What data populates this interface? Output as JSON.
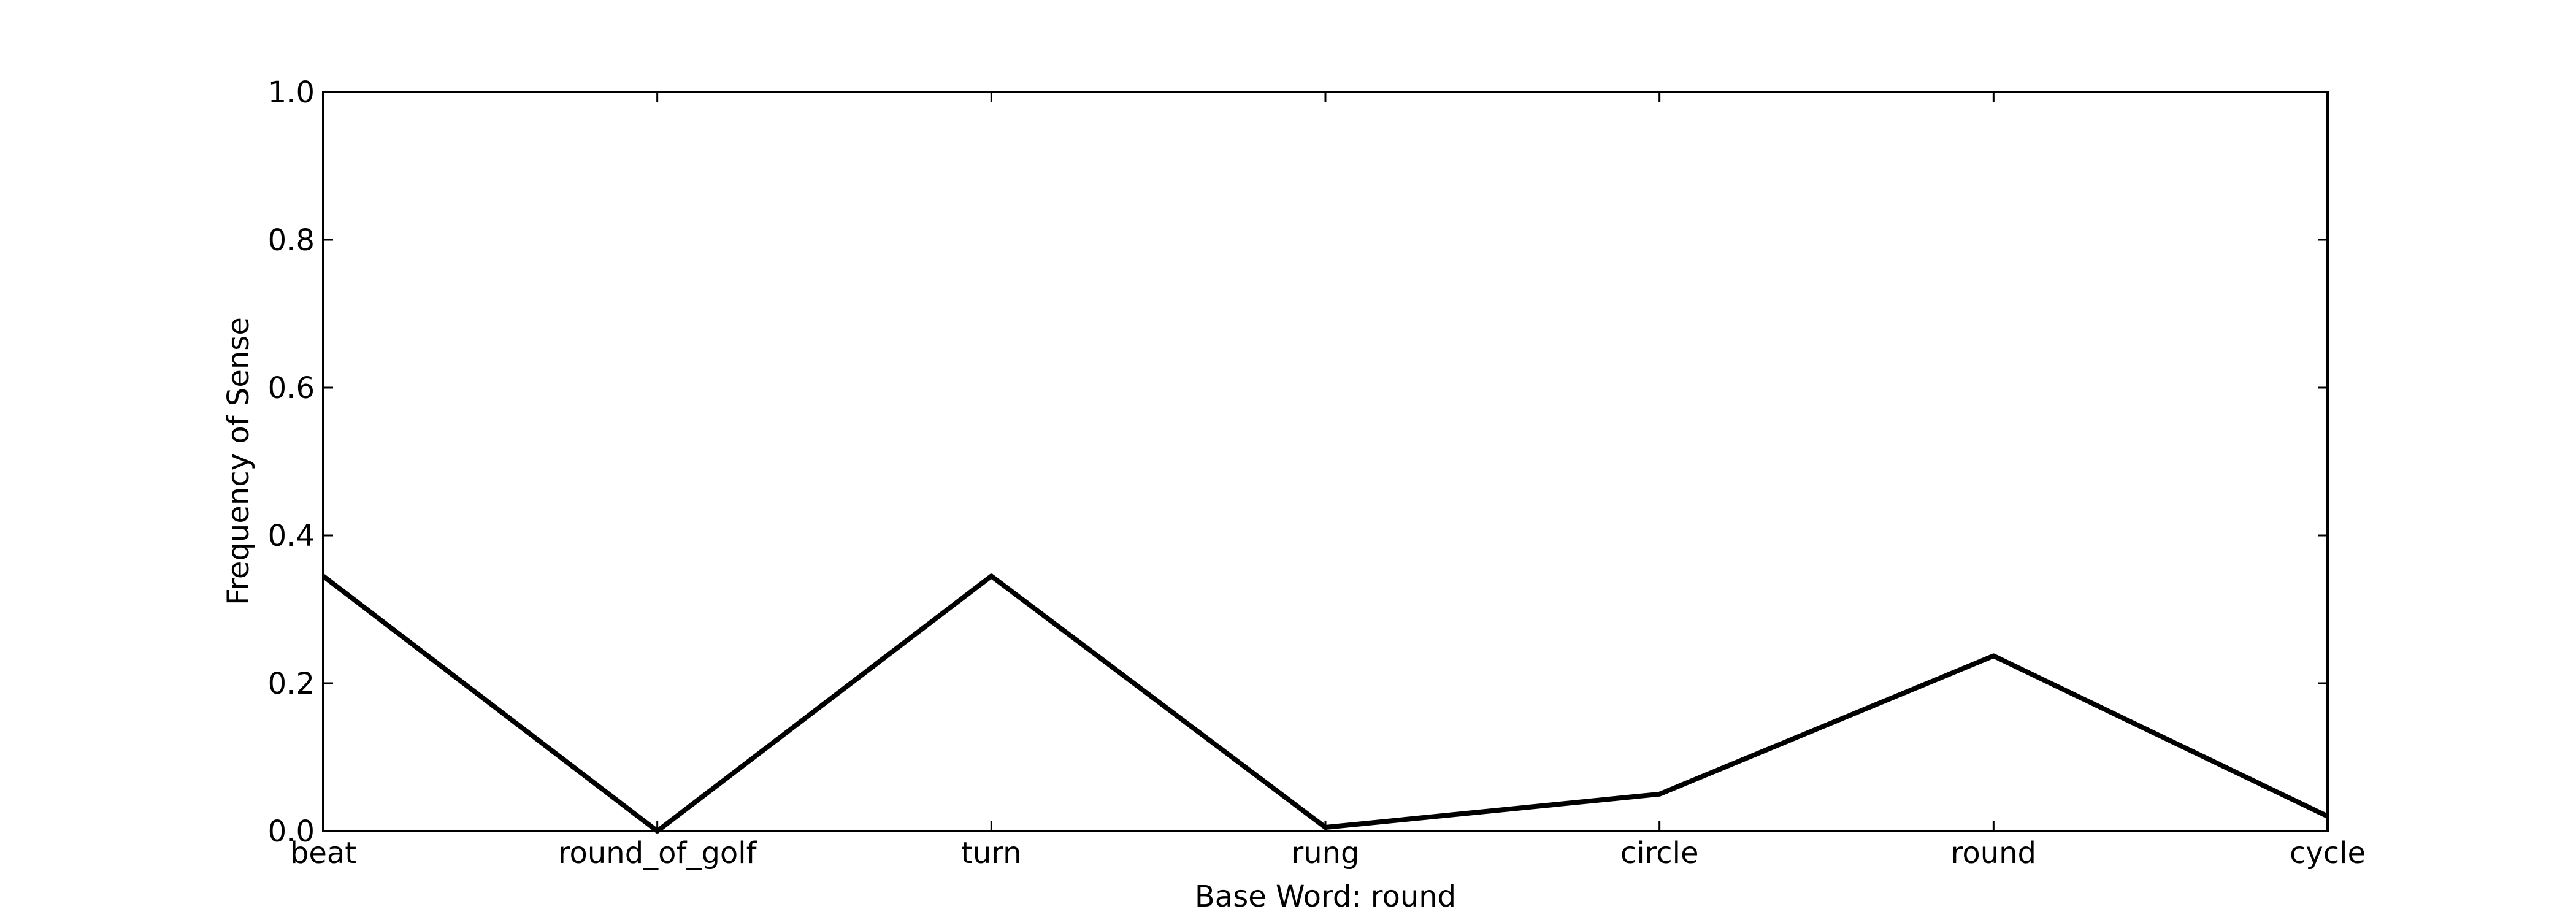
{
  "chart_data": {
    "type": "line",
    "title": "",
    "xlabel": "Base Word: round",
    "ylabel": "Frequency of Sense",
    "categories": [
      "beat",
      "round_of_golf",
      "turn",
      "rung",
      "circle",
      "round",
      "cycle"
    ],
    "series": [
      {
        "name": "",
        "values": [
          0.345,
          0.0,
          0.345,
          0.005,
          0.05,
          0.237,
          0.02
        ]
      }
    ],
    "ylim": [
      0.0,
      1.0
    ],
    "yticks": [
      0.0,
      0.2,
      0.4,
      0.6,
      0.8,
      1.0
    ],
    "ytick_labels": [
      "0.0",
      "0.2",
      "0.4",
      "0.6",
      "0.8",
      "1.0"
    ],
    "grid": false,
    "line_color": "#000000"
  }
}
